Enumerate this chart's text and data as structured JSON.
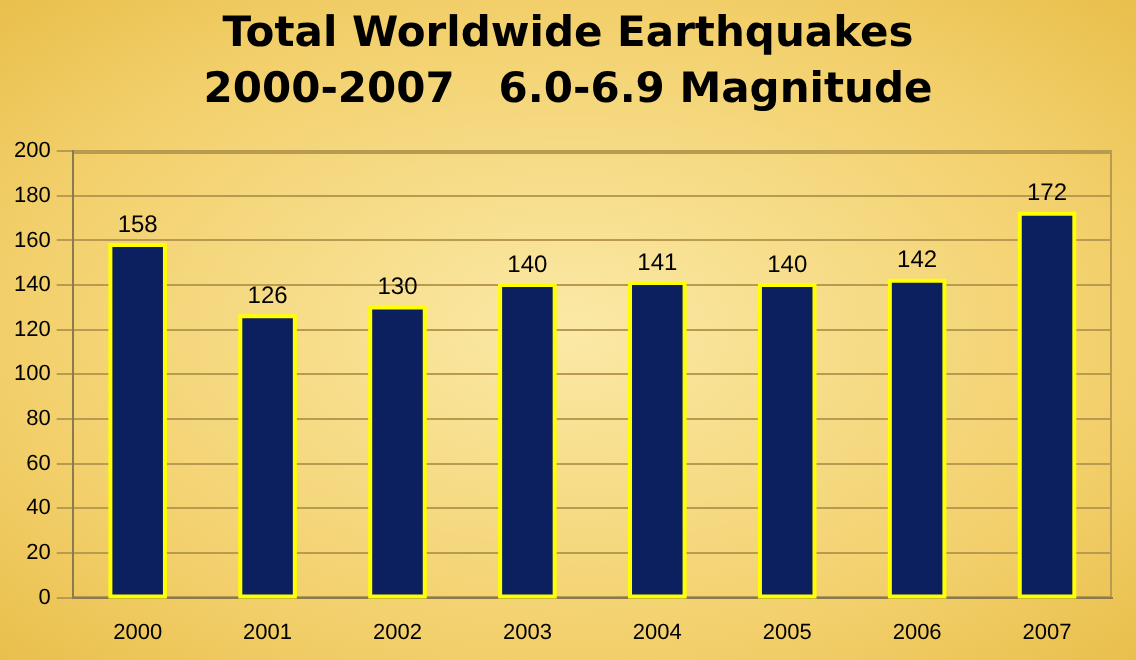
{
  "chart_data": {
    "type": "bar",
    "title": "Total Worldwide Earthquakes\n2000-2007   6.0-6.9 Magnitude",
    "categories": [
      "2000",
      "2001",
      "2002",
      "2003",
      "2004",
      "2005",
      "2006",
      "2007"
    ],
    "values": [
      158,
      126,
      130,
      140,
      141,
      140,
      142,
      172
    ],
    "color": "#0c1f5e",
    "ylim": [
      0,
      200
    ],
    "yticks": [
      0,
      20,
      40,
      60,
      80,
      100,
      120,
      140,
      160,
      180,
      200
    ],
    "grid": "y",
    "data_labels": true,
    "legend": false
  }
}
